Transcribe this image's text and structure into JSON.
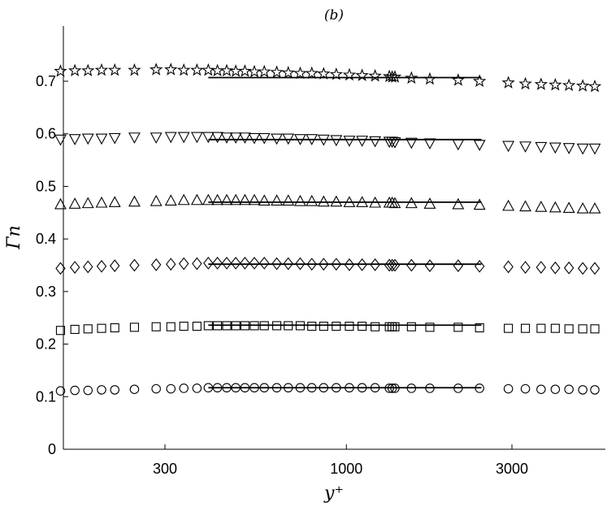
{
  "chart_data": {
    "type": "scatter",
    "title": "(b)",
    "xlabel": "y⁺",
    "ylabel": "Γn",
    "xscale": "log",
    "xlim": [
      140,
      5600
    ],
    "ylim": [
      0,
      0.8
    ],
    "x_ticks": [
      300,
      1000,
      3000
    ],
    "x_tick_labels": [
      "300",
      "1000",
      "3000"
    ],
    "y_ticks": [
      0,
      0.1,
      0.2,
      0.3,
      0.4,
      0.5,
      0.6,
      0.7
    ],
    "y_tick_labels": [
      "0",
      "0.1",
      "0.2",
      "0.3",
      "0.4",
      "0.5",
      "0.6",
      "0.7"
    ],
    "grid": false,
    "line_xrange": [
      400,
      2450
    ],
    "series": [
      {
        "marker": "circle",
        "line_value": 0.117,
        "points": [
          [
            150,
            0.111
          ],
          [
            165,
            0.112
          ],
          [
            180,
            0.112
          ],
          [
            197,
            0.113
          ],
          [
            215,
            0.113
          ],
          [
            245,
            0.114
          ],
          [
            283,
            0.115
          ],
          [
            312,
            0.115
          ],
          [
            340,
            0.116
          ],
          [
            371,
            0.116
          ],
          [
            400,
            0.117
          ],
          [
            425,
            0.117
          ],
          [
            452,
            0.117
          ],
          [
            480,
            0.117
          ],
          [
            510,
            0.117
          ],
          [
            543,
            0.117
          ],
          [
            580,
            0.117
          ],
          [
            630,
            0.117
          ],
          [
            680,
            0.117
          ],
          [
            736,
            0.117
          ],
          [
            795,
            0.117
          ],
          [
            860,
            0.117
          ],
          [
            935,
            0.117
          ],
          [
            1020,
            0.117
          ],
          [
            1110,
            0.117
          ],
          [
            1210,
            0.117
          ],
          [
            1330,
            0.116
          ],
          [
            1355,
            0.116
          ],
          [
            1380,
            0.116
          ],
          [
            1540,
            0.116
          ],
          [
            1740,
            0.116
          ],
          [
            2100,
            0.116
          ],
          [
            2420,
            0.116
          ],
          [
            2930,
            0.115
          ],
          [
            3280,
            0.115
          ],
          [
            3640,
            0.114
          ],
          [
            4000,
            0.114
          ],
          [
            4380,
            0.114
          ],
          [
            4800,
            0.113
          ],
          [
            5200,
            0.113
          ]
        ]
      },
      {
        "marker": "square",
        "line_value": 0.236,
        "points": [
          [
            150,
            0.226
          ],
          [
            165,
            0.228
          ],
          [
            180,
            0.229
          ],
          [
            197,
            0.23
          ],
          [
            215,
            0.231
          ],
          [
            245,
            0.232
          ],
          [
            283,
            0.233
          ],
          [
            312,
            0.233
          ],
          [
            340,
            0.234
          ],
          [
            371,
            0.234
          ],
          [
            400,
            0.235
          ],
          [
            425,
            0.235
          ],
          [
            452,
            0.235
          ],
          [
            480,
            0.235
          ],
          [
            510,
            0.235
          ],
          [
            543,
            0.235
          ],
          [
            580,
            0.235
          ],
          [
            630,
            0.235
          ],
          [
            680,
            0.235
          ],
          [
            736,
            0.235
          ],
          [
            795,
            0.234
          ],
          [
            860,
            0.234
          ],
          [
            935,
            0.234
          ],
          [
            1020,
            0.234
          ],
          [
            1110,
            0.234
          ],
          [
            1210,
            0.233
          ],
          [
            1330,
            0.233
          ],
          [
            1355,
            0.233
          ],
          [
            1380,
            0.233
          ],
          [
            1540,
            0.233
          ],
          [
            1740,
            0.232
          ],
          [
            2100,
            0.232
          ],
          [
            2420,
            0.231
          ],
          [
            2930,
            0.23
          ],
          [
            3280,
            0.23
          ],
          [
            3640,
            0.23
          ],
          [
            4000,
            0.23
          ],
          [
            4380,
            0.229
          ],
          [
            4800,
            0.229
          ],
          [
            5200,
            0.229
          ]
        ]
      },
      {
        "marker": "diamond",
        "line_value": 0.352,
        "points": [
          [
            150,
            0.344
          ],
          [
            165,
            0.346
          ],
          [
            180,
            0.347
          ],
          [
            197,
            0.348
          ],
          [
            215,
            0.349
          ],
          [
            245,
            0.35
          ],
          [
            283,
            0.351
          ],
          [
            312,
            0.352
          ],
          [
            340,
            0.353
          ],
          [
            371,
            0.353
          ],
          [
            400,
            0.354
          ],
          [
            425,
            0.354
          ],
          [
            452,
            0.354
          ],
          [
            480,
            0.354
          ],
          [
            510,
            0.354
          ],
          [
            543,
            0.354
          ],
          [
            580,
            0.354
          ],
          [
            630,
            0.353
          ],
          [
            680,
            0.353
          ],
          [
            736,
            0.353
          ],
          [
            795,
            0.352
          ],
          [
            860,
            0.352
          ],
          [
            935,
            0.352
          ],
          [
            1020,
            0.351
          ],
          [
            1110,
            0.351
          ],
          [
            1210,
            0.351
          ],
          [
            1330,
            0.35
          ],
          [
            1355,
            0.35
          ],
          [
            1380,
            0.35
          ],
          [
            1540,
            0.35
          ],
          [
            1740,
            0.349
          ],
          [
            2100,
            0.349
          ],
          [
            2420,
            0.348
          ],
          [
            2930,
            0.347
          ],
          [
            3280,
            0.346
          ],
          [
            3640,
            0.346
          ],
          [
            4000,
            0.345
          ],
          [
            4380,
            0.345
          ],
          [
            4800,
            0.344
          ],
          [
            5200,
            0.344
          ]
        ]
      },
      {
        "marker": "triangle-up",
        "line_value": 0.47,
        "points": [
          [
            150,
            0.466
          ],
          [
            165,
            0.467
          ],
          [
            180,
            0.468
          ],
          [
            197,
            0.469
          ],
          [
            215,
            0.47
          ],
          [
            245,
            0.471
          ],
          [
            283,
            0.472
          ],
          [
            312,
            0.473
          ],
          [
            340,
            0.474
          ],
          [
            371,
            0.474
          ],
          [
            400,
            0.474
          ],
          [
            425,
            0.474
          ],
          [
            452,
            0.474
          ],
          [
            480,
            0.474
          ],
          [
            510,
            0.474
          ],
          [
            543,
            0.474
          ],
          [
            580,
            0.473
          ],
          [
            630,
            0.473
          ],
          [
            680,
            0.473
          ],
          [
            736,
            0.472
          ],
          [
            795,
            0.472
          ],
          [
            860,
            0.471
          ],
          [
            935,
            0.471
          ],
          [
            1020,
            0.47
          ],
          [
            1110,
            0.47
          ],
          [
            1210,
            0.469
          ],
          [
            1330,
            0.469
          ],
          [
            1355,
            0.469
          ],
          [
            1380,
            0.468
          ],
          [
            1540,
            0.468
          ],
          [
            1740,
            0.467
          ],
          [
            2100,
            0.466
          ],
          [
            2420,
            0.465
          ],
          [
            2930,
            0.463
          ],
          [
            3280,
            0.462
          ],
          [
            3640,
            0.461
          ],
          [
            4000,
            0.46
          ],
          [
            4380,
            0.459
          ],
          [
            4800,
            0.458
          ],
          [
            5200,
            0.458
          ]
        ]
      },
      {
        "marker": "triangle-down",
        "line_value": 0.589,
        "points": [
          [
            150,
            0.589
          ],
          [
            165,
            0.59
          ],
          [
            180,
            0.591
          ],
          [
            197,
            0.591
          ],
          [
            215,
            0.592
          ],
          [
            245,
            0.593
          ],
          [
            283,
            0.593
          ],
          [
            312,
            0.594
          ],
          [
            340,
            0.594
          ],
          [
            371,
            0.594
          ],
          [
            400,
            0.594
          ],
          [
            425,
            0.594
          ],
          [
            452,
            0.593
          ],
          [
            480,
            0.593
          ],
          [
            510,
            0.593
          ],
          [
            543,
            0.592
          ],
          [
            580,
            0.592
          ],
          [
            630,
            0.591
          ],
          [
            680,
            0.591
          ],
          [
            736,
            0.59
          ],
          [
            795,
            0.59
          ],
          [
            860,
            0.589
          ],
          [
            935,
            0.588
          ],
          [
            1020,
            0.587
          ],
          [
            1110,
            0.587
          ],
          [
            1210,
            0.586
          ],
          [
            1330,
            0.585
          ],
          [
            1355,
            0.585
          ],
          [
            1380,
            0.584
          ],
          [
            1540,
            0.583
          ],
          [
            1740,
            0.582
          ],
          [
            2100,
            0.58
          ],
          [
            2420,
            0.579
          ],
          [
            2930,
            0.577
          ],
          [
            3280,
            0.576
          ],
          [
            3640,
            0.575
          ],
          [
            4000,
            0.574
          ],
          [
            4380,
            0.573
          ],
          [
            4800,
            0.572
          ],
          [
            5200,
            0.572
          ]
        ]
      },
      {
        "marker": "star",
        "line_value": 0.707,
        "points": [
          [
            150,
            0.719
          ],
          [
            165,
            0.72
          ],
          [
            180,
            0.72
          ],
          [
            197,
            0.721
          ],
          [
            215,
            0.721
          ],
          [
            245,
            0.721
          ],
          [
            283,
            0.722
          ],
          [
            312,
            0.722
          ],
          [
            340,
            0.721
          ],
          [
            371,
            0.721
          ],
          [
            400,
            0.721
          ],
          [
            425,
            0.72
          ],
          [
            452,
            0.72
          ],
          [
            480,
            0.719
          ],
          [
            510,
            0.719
          ],
          [
            543,
            0.718
          ],
          [
            580,
            0.718
          ],
          [
            630,
            0.717
          ],
          [
            680,
            0.716
          ],
          [
            736,
            0.715
          ],
          [
            795,
            0.715
          ],
          [
            860,
            0.714
          ],
          [
            935,
            0.713
          ],
          [
            1020,
            0.712
          ],
          [
            1110,
            0.711
          ],
          [
            1210,
            0.71
          ],
          [
            1330,
            0.709
          ],
          [
            1355,
            0.708
          ],
          [
            1380,
            0.708
          ],
          [
            1540,
            0.706
          ],
          [
            1740,
            0.704
          ],
          [
            2100,
            0.702
          ],
          [
            2420,
            0.7
          ],
          [
            2930,
            0.697
          ],
          [
            3280,
            0.695
          ],
          [
            3640,
            0.694
          ],
          [
            4000,
            0.693
          ],
          [
            4380,
            0.692
          ],
          [
            4800,
            0.691
          ],
          [
            5200,
            0.69
          ]
        ]
      }
    ]
  }
}
